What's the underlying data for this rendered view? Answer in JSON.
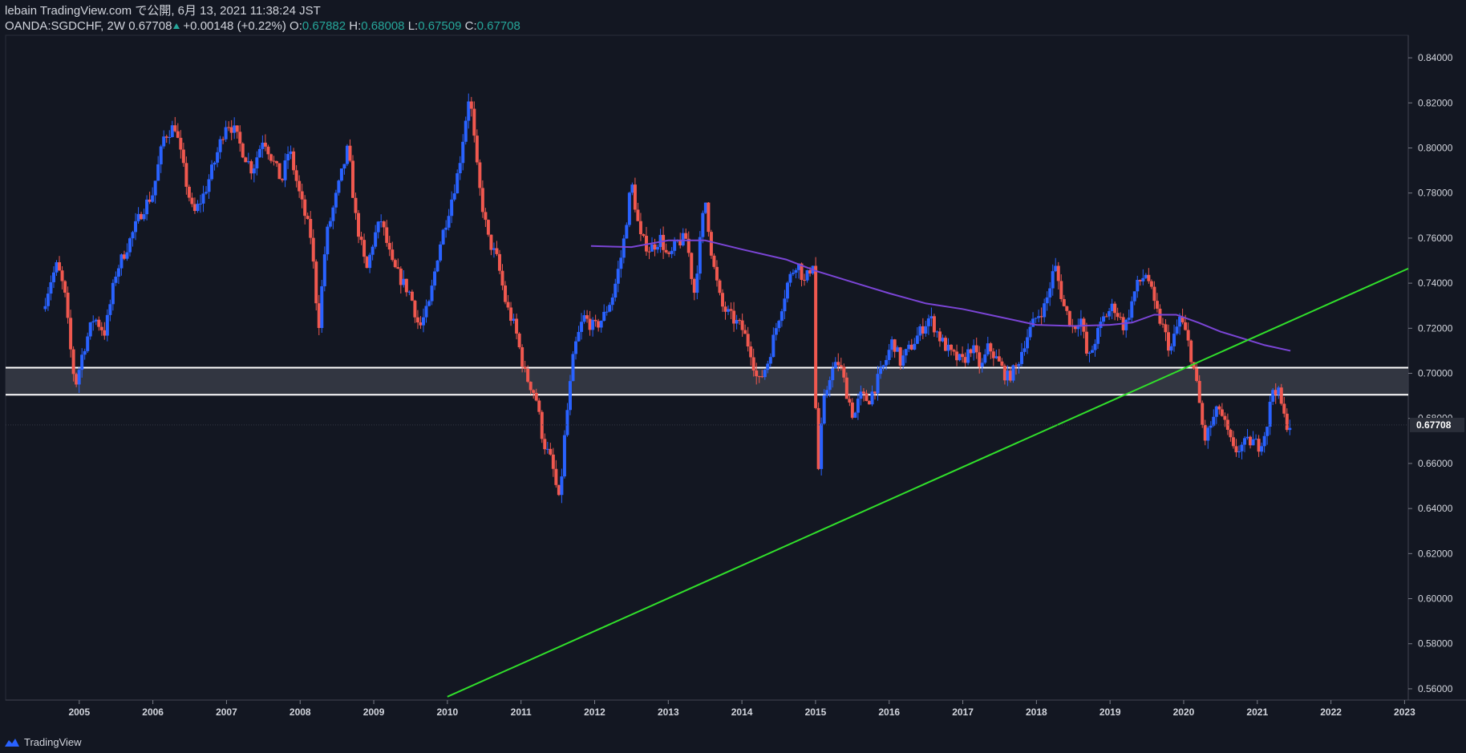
{
  "header": {
    "publish_line": "lebain TradingView.com で公開, 6月 13, 2021 11:38:24 JST",
    "symbol": "OANDA:SGDCHF, 2W",
    "last": "0.67708",
    "change": "+0.00148 (+0.22%)",
    "o_label": "O:",
    "o": "0.67882",
    "h_label": "H:",
    "h": "0.68008",
    "l_label": "L:",
    "l": "0.67509",
    "c_label": "C:",
    "c": "0.67708"
  },
  "footer": {
    "brand": "TradingView"
  },
  "colors": {
    "background": "#131722",
    "up": "#2962ff",
    "down": "#f0584f",
    "ma": "#7b45d6",
    "trendline": "#31e02b",
    "zone_fill": "#363a45",
    "zone_border": "#ffffff",
    "price_label_bg": "#2a2e39"
  },
  "chart_data": {
    "type": "candlestick",
    "ylim": [
      0.555,
      0.85
    ],
    "x_range": [
      2004.0,
      2023.05
    ],
    "y_ticks": [
      "0.84000",
      "0.82000",
      "0.80000",
      "0.78000",
      "0.76000",
      "0.74000",
      "0.72000",
      "0.70000",
      "0.68000",
      "0.66000",
      "0.64000",
      "0.62000",
      "0.60000",
      "0.58000",
      "0.56000"
    ],
    "x_ticks": [
      "2005",
      "2006",
      "2007",
      "2008",
      "2009",
      "2010",
      "2011",
      "2012",
      "2013",
      "2014",
      "2015",
      "2016",
      "2017",
      "2018",
      "2019",
      "2020",
      "2021",
      "2022",
      "2023"
    ],
    "last_price_label": "0.67708",
    "support_zone": [
      0.6905,
      0.7025
    ],
    "trendline": [
      [
        2010.0,
        0.5565
      ],
      [
        2023.05,
        0.7465
      ]
    ],
    "ma_series": [
      [
        2011.95,
        0.7565
      ],
      [
        2012.5,
        0.756
      ],
      [
        2013.0,
        0.759
      ],
      [
        2013.5,
        0.759
      ],
      [
        2014.0,
        0.755
      ],
      [
        2014.6,
        0.7505
      ],
      [
        2015.0,
        0.7455
      ],
      [
        2015.6,
        0.7395
      ],
      [
        2016.0,
        0.7355
      ],
      [
        2016.5,
        0.731
      ],
      [
        2017.0,
        0.7285
      ],
      [
        2017.5,
        0.725
      ],
      [
        2018.0,
        0.7215
      ],
      [
        2018.5,
        0.721
      ],
      [
        2019.0,
        0.7215
      ],
      [
        2019.3,
        0.7225
      ],
      [
        2019.6,
        0.726
      ],
      [
        2019.9,
        0.726
      ],
      [
        2020.2,
        0.7225
      ],
      [
        2020.5,
        0.7185
      ],
      [
        2020.8,
        0.7155
      ],
      [
        2021.1,
        0.7125
      ],
      [
        2021.45,
        0.71
      ]
    ],
    "price_path": [
      [
        2004.5,
        0.7285
      ],
      [
        2004.62,
        0.742
      ],
      [
        2004.7,
        0.748
      ],
      [
        2004.8,
        0.736
      ],
      [
        2004.9,
        0.705
      ],
      [
        2004.95,
        0.6945
      ],
      [
        2005.05,
        0.71
      ],
      [
        2005.2,
        0.725
      ],
      [
        2005.35,
        0.718
      ],
      [
        2005.5,
        0.745
      ],
      [
        2005.7,
        0.76
      ],
      [
        2005.85,
        0.772
      ],
      [
        2006.0,
        0.78
      ],
      [
        2006.15,
        0.805
      ],
      [
        2006.3,
        0.81
      ],
      [
        2006.45,
        0.785
      ],
      [
        2006.55,
        0.77
      ],
      [
        2006.7,
        0.78
      ],
      [
        2006.85,
        0.795
      ],
      [
        2007.0,
        0.812
      ],
      [
        2007.1,
        0.808
      ],
      [
        2007.2,
        0.8
      ],
      [
        2007.35,
        0.79
      ],
      [
        2007.5,
        0.805
      ],
      [
        2007.62,
        0.795
      ],
      [
        2007.75,
        0.785
      ],
      [
        2007.85,
        0.8
      ],
      [
        2008.0,
        0.778
      ],
      [
        2008.15,
        0.76
      ],
      [
        2008.25,
        0.72
      ],
      [
        2008.35,
        0.76
      ],
      [
        2008.5,
        0.78
      ],
      [
        2008.65,
        0.8
      ],
      [
        2008.75,
        0.77
      ],
      [
        2008.9,
        0.745
      ],
      [
        2009.0,
        0.76
      ],
      [
        2009.1,
        0.768
      ],
      [
        2009.25,
        0.748
      ],
      [
        2009.4,
        0.74
      ],
      [
        2009.5,
        0.735
      ],
      [
        2009.62,
        0.72
      ],
      [
        2009.75,
        0.73
      ],
      [
        2009.88,
        0.755
      ],
      [
        2010.0,
        0.77
      ],
      [
        2010.15,
        0.79
      ],
      [
        2010.3,
        0.825
      ],
      [
        2010.42,
        0.785
      ],
      [
        2010.55,
        0.76
      ],
      [
        2010.68,
        0.75
      ],
      [
        2010.8,
        0.73
      ],
      [
        2010.92,
        0.72
      ],
      [
        2011.05,
        0.7
      ],
      [
        2011.2,
        0.69
      ],
      [
        2011.3,
        0.67
      ],
      [
        2011.42,
        0.66
      ],
      [
        2011.52,
        0.642
      ],
      [
        2011.6,
        0.675
      ],
      [
        2011.72,
        0.71
      ],
      [
        2011.85,
        0.725
      ],
      [
        2012.0,
        0.72
      ],
      [
        2012.12,
        0.725
      ],
      [
        2012.25,
        0.735
      ],
      [
        2012.38,
        0.755
      ],
      [
        2012.5,
        0.785
      ],
      [
        2012.62,
        0.76
      ],
      [
        2012.75,
        0.755
      ],
      [
        2012.9,
        0.76
      ],
      [
        2013.0,
        0.75
      ],
      [
        2013.12,
        0.758
      ],
      [
        2013.25,
        0.76
      ],
      [
        2013.35,
        0.735
      ],
      [
        2013.5,
        0.778
      ],
      [
        2013.6,
        0.75
      ],
      [
        2013.72,
        0.73
      ],
      [
        2013.85,
        0.725
      ],
      [
        2014.0,
        0.72
      ],
      [
        2014.12,
        0.71
      ],
      [
        2014.22,
        0.695
      ],
      [
        2014.35,
        0.705
      ],
      [
        2014.5,
        0.725
      ],
      [
        2014.62,
        0.74
      ],
      [
        2014.75,
        0.75
      ],
      [
        2014.85,
        0.74
      ],
      [
        2014.97,
        0.75
      ],
      [
        2015.02,
        0.648
      ],
      [
        2015.1,
        0.685
      ],
      [
        2015.2,
        0.7
      ],
      [
        2015.32,
        0.705
      ],
      [
        2015.42,
        0.692
      ],
      [
        2015.52,
        0.68
      ],
      [
        2015.6,
        0.69
      ],
      [
        2015.72,
        0.688
      ],
      [
        2015.82,
        0.695
      ],
      [
        2015.95,
        0.705
      ],
      [
        2016.05,
        0.715
      ],
      [
        2016.15,
        0.705
      ],
      [
        2016.3,
        0.712
      ],
      [
        2016.45,
        0.72
      ],
      [
        2016.55,
        0.725
      ],
      [
        2016.7,
        0.715
      ],
      [
        2016.85,
        0.708
      ],
      [
        2017.0,
        0.705
      ],
      [
        2017.12,
        0.712
      ],
      [
        2017.25,
        0.702
      ],
      [
        2017.35,
        0.712
      ],
      [
        2017.48,
        0.705
      ],
      [
        2017.6,
        0.698
      ],
      [
        2017.72,
        0.702
      ],
      [
        2017.85,
        0.715
      ],
      [
        2018.0,
        0.725
      ],
      [
        2018.12,
        0.73
      ],
      [
        2018.25,
        0.748
      ],
      [
        2018.37,
        0.73
      ],
      [
        2018.5,
        0.72
      ],
      [
        2018.6,
        0.725
      ],
      [
        2018.7,
        0.705
      ],
      [
        2018.8,
        0.715
      ],
      [
        2018.92,
        0.725
      ],
      [
        2019.05,
        0.73
      ],
      [
        2019.2,
        0.72
      ],
      [
        2019.35,
        0.738
      ],
      [
        2019.5,
        0.745
      ],
      [
        2019.6,
        0.73
      ],
      [
        2019.72,
        0.72
      ],
      [
        2019.82,
        0.71
      ],
      [
        2019.95,
        0.725
      ],
      [
        2020.05,
        0.715
      ],
      [
        2020.12,
        0.705
      ],
      [
        2020.2,
        0.69
      ],
      [
        2020.28,
        0.67
      ],
      [
        2020.38,
        0.678
      ],
      [
        2020.48,
        0.685
      ],
      [
        2020.58,
        0.675
      ],
      [
        2020.68,
        0.665
      ],
      [
        2020.8,
        0.668
      ],
      [
        2020.92,
        0.67
      ],
      [
        2021.02,
        0.668
      ],
      [
        2021.12,
        0.675
      ],
      [
        2021.22,
        0.695
      ],
      [
        2021.3,
        0.69
      ],
      [
        2021.38,
        0.678
      ],
      [
        2021.45,
        0.6771
      ]
    ]
  }
}
